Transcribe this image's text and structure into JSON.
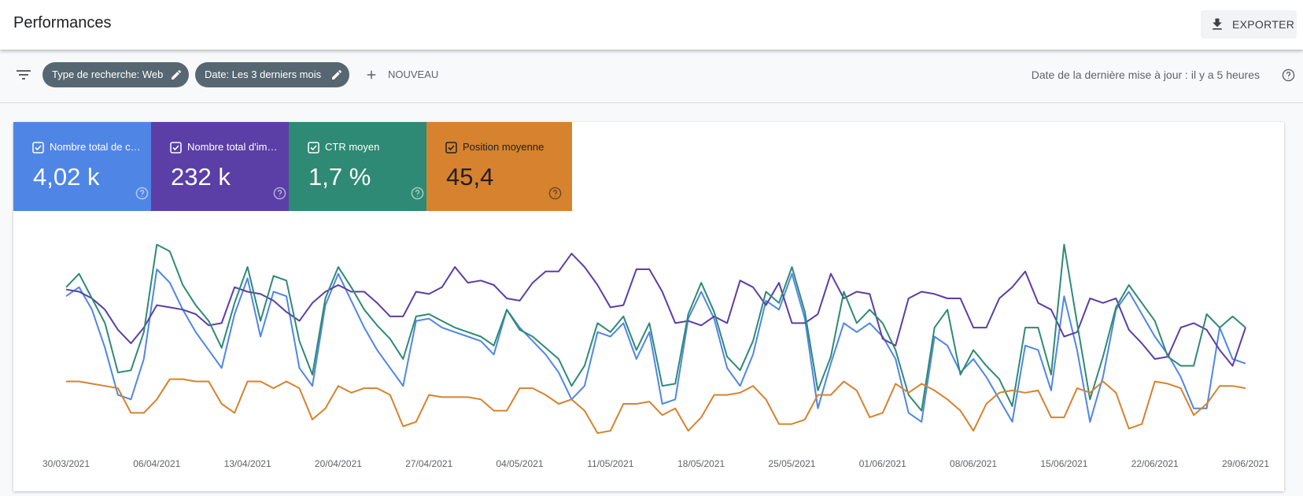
{
  "header": {
    "title": "Performances",
    "export": "EXPORTER"
  },
  "filters": {
    "chips": [
      "Type de recherche: Web",
      "Date: Les 3 derniers mois"
    ],
    "add": "NOUVEAU",
    "last_update": "Date de la dernière mise à jour : il y a 5 heures"
  },
  "chart_data": {
    "type": "line",
    "categories": [
      "30/03/2021",
      null,
      null,
      null,
      null,
      null,
      null,
      "06/04/2021",
      null,
      null,
      null,
      null,
      null,
      null,
      "13/04/2021",
      null,
      null,
      null,
      null,
      null,
      null,
      "20/04/2021",
      null,
      null,
      null,
      null,
      null,
      null,
      "27/04/2021",
      null,
      null,
      null,
      null,
      null,
      null,
      "04/05/2021",
      null,
      null,
      null,
      null,
      null,
      null,
      "11/05/2021",
      null,
      null,
      null,
      null,
      null,
      null,
      "18/05/2021",
      null,
      null,
      null,
      null,
      null,
      null,
      "25/05/2021",
      null,
      null,
      null,
      null,
      null,
      null,
      "01/06/2021",
      null,
      null,
      null,
      null,
      null,
      null,
      "08/06/2021",
      null,
      null,
      null,
      null,
      null,
      null,
      "15/06/2021",
      null,
      null,
      null,
      null,
      null,
      null,
      "22/06/2021",
      null,
      null,
      null,
      null,
      null,
      null,
      "29/06/2021"
    ],
    "ylim": [
      0,
      100
    ],
    "series": [
      {
        "name": "Nombre total de c…",
        "total": "4,02 k",
        "color": "#4f86e6",
        "values": [
          68,
          72,
          62,
          45,
          24,
          22,
          40,
          80,
          74,
          62,
          52,
          44,
          36,
          60,
          76,
          50,
          70,
          68,
          36,
          28,
          64,
          78,
          66,
          54,
          44,
          36,
          28,
          57,
          58,
          54,
          52,
          50,
          48,
          42,
          62,
          54,
          48,
          42,
          34,
          22,
          28,
          52,
          50,
          56,
          40,
          52,
          20,
          22,
          58,
          70,
          58,
          36,
          28,
          42,
          66,
          62,
          78,
          58,
          18,
          38,
          56,
          52,
          56,
          50,
          40,
          16,
          12,
          50,
          46,
          34,
          40,
          32,
          22,
          12,
          46,
          44,
          26,
          68,
          44,
          12,
          32,
          62,
          70,
          60,
          50,
          42,
          32,
          18,
          18,
          54,
          40,
          38
        ]
      },
      {
        "name": "Nombre total d'im…",
        "total": "232 k",
        "color": "#5b3ea6",
        "values": [
          71,
          70,
          67,
          62,
          53,
          47,
          54,
          64,
          63,
          62,
          60,
          55,
          56,
          72,
          70,
          69,
          66,
          61,
          57,
          65,
          70,
          73,
          70,
          70,
          65,
          59,
          59,
          70,
          69,
          72,
          81,
          74,
          75,
          73,
          67,
          66,
          74,
          79,
          79,
          87,
          81,
          73,
          63,
          64,
          80,
          80,
          70,
          56,
          57,
          55,
          59,
          56,
          75,
          72,
          64,
          74,
          56,
          56,
          60,
          78,
          67,
          70,
          69,
          49,
          46,
          67,
          70,
          69,
          67,
          67,
          54,
          54,
          67,
          72,
          79,
          65,
          62,
          50,
          52,
          67,
          65,
          67,
          53,
          47,
          40,
          41,
          54,
          56,
          53,
          44,
          37,
          54
        ]
      },
      {
        "name": "CTR moyen",
        "total": "1,7 %",
        "color": "#2e8a74",
        "values": [
          72,
          78,
          67,
          56,
          34,
          35,
          52,
          91,
          88,
          73,
          64,
          57,
          45,
          65,
          81,
          57,
          77,
          75,
          48,
          33,
          67,
          81,
          72,
          62,
          55,
          49,
          40,
          59,
          60,
          57,
          54,
          52,
          50,
          46,
          62,
          53,
          50,
          45,
          40,
          28,
          37,
          56,
          52,
          59,
          44,
          56,
          28,
          29,
          60,
          74,
          61,
          41,
          35,
          48,
          70,
          65,
          81,
          61,
          26,
          41,
          70,
          56,
          62,
          56,
          44,
          24,
          17,
          54,
          62,
          33,
          44,
          37,
          31,
          19,
          54,
          54,
          33,
          91,
          56,
          22,
          41,
          63,
          73,
          65,
          57,
          41,
          37,
          37,
          60,
          54,
          59,
          54
        ]
      },
      {
        "name": "Position moyenne",
        "total": "45,4",
        "color": "#d6822e",
        "values": [
          30,
          30,
          29,
          28,
          27,
          16,
          16,
          22,
          31,
          31,
          30,
          30,
          20,
          16,
          30,
          30,
          27,
          30,
          27,
          13,
          18,
          28,
          25,
          27,
          27,
          24,
          10,
          12,
          24,
          23,
          23,
          23,
          22,
          17,
          17,
          27,
          27,
          24,
          20,
          22,
          17,
          7,
          8,
          20,
          20,
          21,
          15,
          18,
          8,
          14,
          24,
          24,
          25,
          28,
          22,
          11,
          11,
          13,
          24,
          24,
          30,
          26,
          14,
          16,
          29,
          25,
          29,
          26,
          22,
          17,
          8,
          20,
          25,
          26,
          25,
          26,
          14,
          14,
          27,
          25,
          30,
          25,
          9,
          11,
          30,
          29,
          27,
          15,
          20,
          28,
          28,
          27
        ]
      }
    ]
  }
}
